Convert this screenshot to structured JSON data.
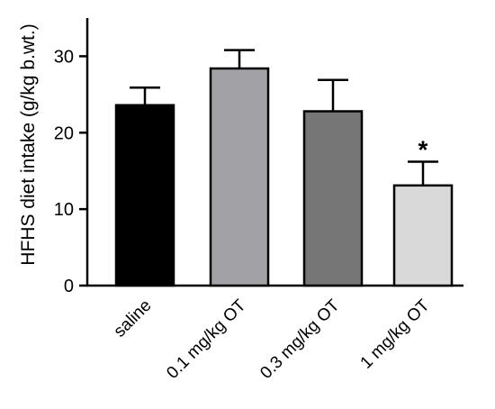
{
  "chart_data": {
    "type": "bar",
    "title": "",
    "xlabel": "",
    "ylabel": "HFHS diet intake (g/kg b.wt.)",
    "ylim": [
      0,
      35
    ],
    "yticks": [
      "0",
      "10",
      "20",
      "30"
    ],
    "categories": [
      "saline",
      "0.1 mg/kg OT",
      "0.3 mg/kg OT",
      "1 mg/kg OT"
    ],
    "values": [
      23.6,
      28.4,
      22.8,
      13.1
    ],
    "errors": [
      2.3,
      2.4,
      4.1,
      3.1
    ],
    "bar_colors": [
      "#000000",
      "#a2a2a6",
      "#767676",
      "#d9d9d9"
    ],
    "annotations": [
      "",
      "",
      "",
      "*"
    ],
    "grid": false
  }
}
